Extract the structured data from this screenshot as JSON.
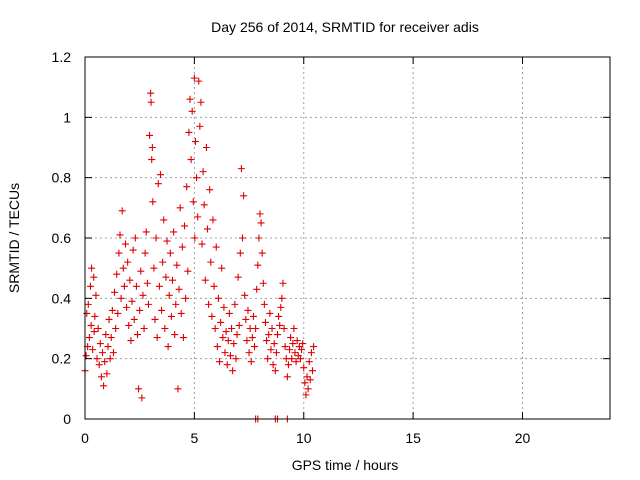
{
  "chart_data": {
    "type": "scatter",
    "title": "Day 256 of 2014, SRMTID for receiver adis",
    "xlabel": "GPS time / hours",
    "ylabel": "SRMTID / TECUs",
    "xlim": [
      0,
      24
    ],
    "ylim": [
      0,
      1.2
    ],
    "x_ticks": [
      0,
      5,
      10,
      15,
      20
    ],
    "x_tick_labels": [
      "0",
      "5",
      "10",
      "15",
      "20"
    ],
    "y_ticks": [
      0,
      0.2,
      0.4,
      0.6,
      0.8,
      1.0,
      1.2
    ],
    "y_tick_labels": [
      "0",
      "0.2",
      "0.4",
      "0.6",
      "0.8",
      "1",
      "1.2"
    ],
    "grid": true,
    "marker": "plus",
    "series_color": "#e00000",
    "series": [
      {
        "name": "SRMTID",
        "points": [
          [
            0.0,
            0.16
          ],
          [
            0.05,
            0.21
          ],
          [
            0.08,
            0.35
          ],
          [
            0.12,
            0.24
          ],
          [
            0.15,
            0.38
          ],
          [
            0.2,
            0.27
          ],
          [
            0.25,
            0.44
          ],
          [
            0.28,
            0.31
          ],
          [
            0.3,
            0.5
          ],
          [
            0.35,
            0.23
          ],
          [
            0.4,
            0.47
          ],
          [
            0.42,
            0.29
          ],
          [
            0.45,
            0.34
          ],
          [
            0.5,
            0.41
          ],
          [
            0.55,
            0.2
          ],
          [
            0.6,
            0.3
          ],
          [
            0.65,
            0.18
          ],
          [
            0.7,
            0.25
          ],
          [
            0.75,
            0.14
          ],
          [
            0.8,
            0.22
          ],
          [
            0.85,
            0.11
          ],
          [
            0.9,
            0.19
          ],
          [
            0.95,
            0.28
          ],
          [
            1.0,
            0.15
          ],
          [
            1.05,
            0.24
          ],
          [
            1.1,
            0.33
          ],
          [
            1.15,
            0.2
          ],
          [
            1.2,
            0.27
          ],
          [
            1.25,
            0.36
          ],
          [
            1.3,
            0.22
          ],
          [
            1.35,
            0.42
          ],
          [
            1.4,
            0.3
          ],
          [
            1.45,
            0.48
          ],
          [
            1.5,
            0.35
          ],
          [
            1.55,
            0.55
          ],
          [
            1.6,
            0.61
          ],
          [
            1.65,
            0.4
          ],
          [
            1.7,
            0.69
          ],
          [
            1.75,
            0.5
          ],
          [
            1.8,
            0.44
          ],
          [
            1.85,
            0.58
          ],
          [
            1.9,
            0.37
          ],
          [
            1.95,
            0.52
          ],
          [
            2.0,
            0.31
          ],
          [
            2.05,
            0.46
          ],
          [
            2.1,
            0.26
          ],
          [
            2.15,
            0.39
          ],
          [
            2.2,
            0.56
          ],
          [
            2.25,
            0.33
          ],
          [
            2.3,
            0.6
          ],
          [
            2.35,
            0.44
          ],
          [
            2.4,
            0.28
          ],
          [
            2.45,
            0.1
          ],
          [
            2.5,
            0.36
          ],
          [
            2.55,
            0.49
          ],
          [
            2.6,
            0.07
          ],
          [
            2.65,
            0.41
          ],
          [
            2.7,
            0.3
          ],
          [
            2.75,
            0.55
          ],
          [
            2.8,
            0.62
          ],
          [
            2.85,
            0.45
          ],
          [
            2.9,
            0.38
          ],
          [
            2.95,
            0.94
          ],
          [
            3.0,
            1.08
          ],
          [
            3.02,
            1.05
          ],
          [
            3.05,
            0.86
          ],
          [
            3.08,
            0.9
          ],
          [
            3.1,
            0.72
          ],
          [
            3.15,
            0.5
          ],
          [
            3.2,
            0.33
          ],
          [
            3.25,
            0.6
          ],
          [
            3.3,
            0.27
          ],
          [
            3.35,
            0.78
          ],
          [
            3.4,
            0.44
          ],
          [
            3.45,
            0.81
          ],
          [
            3.5,
            0.36
          ],
          [
            3.55,
            0.52
          ],
          [
            3.6,
            0.66
          ],
          [
            3.65,
            0.3
          ],
          [
            3.7,
            0.47
          ],
          [
            3.75,
            0.59
          ],
          [
            3.8,
            0.24
          ],
          [
            3.85,
            0.41
          ],
          [
            3.9,
            0.55
          ],
          [
            3.95,
            0.34
          ],
          [
            4.0,
            0.46
          ],
          [
            4.05,
            0.62
          ],
          [
            4.1,
            0.28
          ],
          [
            4.15,
            0.38
          ],
          [
            4.2,
            0.51
          ],
          [
            4.25,
            0.1
          ],
          [
            4.3,
            0.43
          ],
          [
            4.35,
            0.7
          ],
          [
            4.4,
            0.35
          ],
          [
            4.45,
            0.57
          ],
          [
            4.5,
            0.27
          ],
          [
            4.55,
            0.64
          ],
          [
            4.6,
            0.4
          ],
          [
            4.65,
            0.77
          ],
          [
            4.7,
            0.49
          ],
          [
            4.75,
            0.95
          ],
          [
            4.8,
            1.06
          ],
          [
            4.85,
            0.86
          ],
          [
            4.9,
            1.02
          ],
          [
            4.95,
            0.72
          ],
          [
            5.0,
            1.13
          ],
          [
            5.02,
            0.6
          ],
          [
            5.05,
            0.92
          ],
          [
            5.1,
            0.8
          ],
          [
            5.15,
            0.67
          ],
          [
            5.2,
            1.12
          ],
          [
            5.25,
            0.97
          ],
          [
            5.3,
            1.05
          ],
          [
            5.35,
            0.58
          ],
          [
            5.4,
            0.82
          ],
          [
            5.45,
            0.71
          ],
          [
            5.5,
            0.46
          ],
          [
            5.55,
            0.9
          ],
          [
            5.6,
            0.63
          ],
          [
            5.65,
            0.38
          ],
          [
            5.7,
            0.76
          ],
          [
            5.75,
            0.52
          ],
          [
            5.8,
            0.34
          ],
          [
            5.85,
            0.66
          ],
          [
            5.9,
            0.44
          ],
          [
            5.95,
            0.3
          ],
          [
            6.0,
            0.57
          ],
          [
            6.05,
            0.24
          ],
          [
            6.1,
            0.4
          ],
          [
            6.15,
            0.19
          ],
          [
            6.2,
            0.32
          ],
          [
            6.25,
            0.5
          ],
          [
            6.3,
            0.27
          ],
          [
            6.35,
            0.37
          ],
          [
            6.4,
            0.22
          ],
          [
            6.45,
            0.29
          ],
          [
            6.5,
            0.18
          ],
          [
            6.55,
            0.26
          ],
          [
            6.6,
            0.35
          ],
          [
            6.65,
            0.21
          ],
          [
            6.7,
            0.3
          ],
          [
            6.75,
            0.16
          ],
          [
            6.8,
            0.25
          ],
          [
            6.85,
            0.38
          ],
          [
            6.9,
            0.2
          ],
          [
            6.95,
            0.28
          ],
          [
            7.0,
            0.47
          ],
          [
            7.05,
            0.31
          ],
          [
            7.1,
            0.55
          ],
          [
            7.15,
            0.83
          ],
          [
            7.2,
            0.6
          ],
          [
            7.25,
            0.74
          ],
          [
            7.3,
            0.41
          ],
          [
            7.35,
            0.33
          ],
          [
            7.4,
            0.26
          ],
          [
            7.45,
            0.36
          ],
          [
            7.5,
            0.22
          ],
          [
            7.55,
            0.3
          ],
          [
            7.6,
            0.19
          ],
          [
            7.65,
            0.27
          ],
          [
            7.7,
            0.34
          ],
          [
            7.75,
            0.24
          ],
          [
            7.8,
            0.3
          ],
          [
            7.85,
            0.43
          ],
          [
            7.9,
            0.51
          ],
          [
            7.95,
            0.6
          ],
          [
            8.0,
            0.68
          ],
          [
            8.05,
            0.65
          ],
          [
            8.1,
            0.55
          ],
          [
            8.15,
            0.45
          ],
          [
            8.2,
            0.38
          ],
          [
            8.25,
            0.32
          ],
          [
            8.3,
            0.26
          ],
          [
            8.35,
            0.2
          ],
          [
            8.4,
            0.28
          ],
          [
            8.45,
            0.35
          ],
          [
            8.5,
            0.23
          ],
          [
            8.55,
            0.3
          ],
          [
            8.6,
            0.18
          ],
          [
            8.65,
            0.25
          ],
          [
            8.7,
            0.16
          ],
          [
            8.75,
            0.22
          ],
          [
            8.8,
            0.28
          ],
          [
            8.85,
            0.34
          ],
          [
            8.9,
            0.31
          ],
          [
            8.95,
            0.37
          ],
          [
            9.0,
            0.4
          ],
          [
            9.05,
            0.45
          ],
          [
            9.1,
            0.3
          ],
          [
            9.15,
            0.24
          ],
          [
            9.2,
            0.2
          ],
          [
            9.25,
            0.14
          ],
          [
            9.3,
            0.18
          ],
          [
            9.35,
            0.23
          ],
          [
            9.4,
            0.27
          ],
          [
            9.45,
            0.2
          ],
          [
            9.5,
            0.25
          ],
          [
            9.55,
            0.3
          ],
          [
            9.6,
            0.22
          ],
          [
            9.65,
            0.19
          ],
          [
            9.7,
            0.26
          ],
          [
            9.75,
            0.21
          ],
          [
            9.8,
            0.24
          ],
          [
            9.85,
            0.2
          ],
          [
            9.9,
            0.23
          ],
          [
            9.95,
            0.25
          ],
          [
            10.0,
            0.17
          ],
          [
            10.05,
            0.12
          ],
          [
            10.1,
            0.08
          ],
          [
            10.15,
            0.14
          ],
          [
            10.2,
            0.1
          ],
          [
            10.25,
            0.19
          ],
          [
            10.3,
            0.13
          ],
          [
            10.35,
            0.22
          ],
          [
            10.4,
            0.16
          ],
          [
            10.45,
            0.24
          ],
          [
            7.8,
            0.0
          ],
          [
            7.9,
            0.0
          ],
          [
            8.7,
            0.0
          ],
          [
            8.8,
            0.0
          ],
          [
            9.25,
            0.0
          ]
        ]
      }
    ]
  }
}
